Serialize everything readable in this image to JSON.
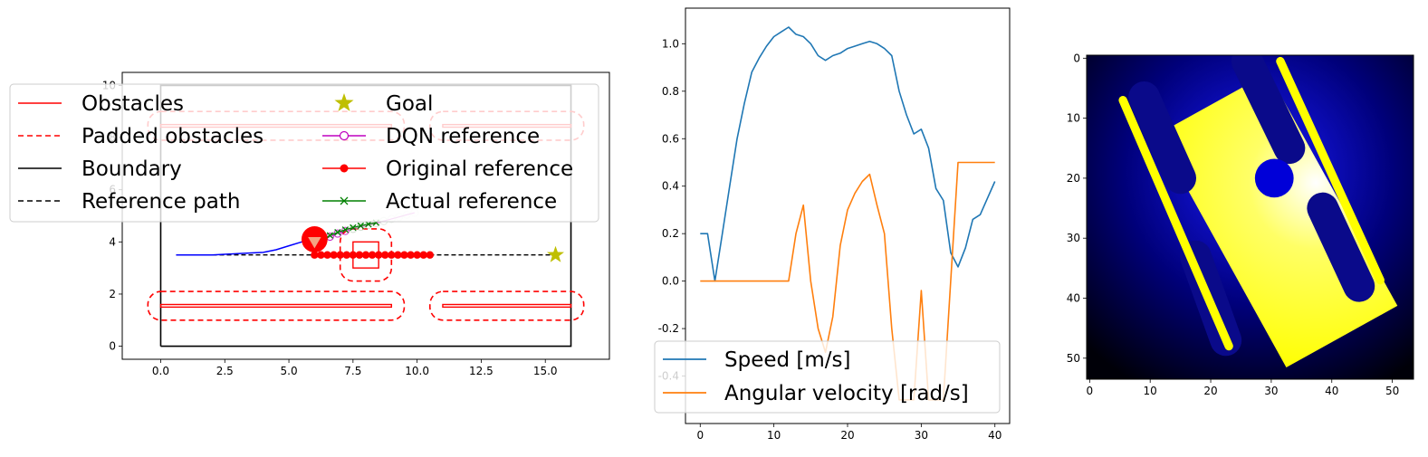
{
  "chart_data": [
    {
      "type": "scatter",
      "title": "",
      "xlabel": "",
      "ylabel": "",
      "xlim": [
        -1.5,
        17.5
      ],
      "ylim": [
        -0.5,
        10.5
      ],
      "x_ticks": [
        "0.0",
        "2.5",
        "5.0",
        "7.5",
        "10.0",
        "12.5",
        "15.0"
      ],
      "x_tick_values": [
        0,
        2.5,
        5,
        7.5,
        10,
        12.5,
        15
      ],
      "y_ticks": [
        "0",
        "2",
        "4",
        "6",
        "8",
        "10"
      ],
      "y_tick_values": [
        0,
        2,
        4,
        6,
        8,
        10
      ],
      "legend": {
        "position": "upper-left",
        "columns": 2,
        "entries": [
          {
            "label": "Obstacles",
            "style": "solid-line",
            "color": "#ff0000"
          },
          {
            "label": "Padded obstacles",
            "style": "dashed-line",
            "color": "#ff0000"
          },
          {
            "label": "Boundary",
            "style": "solid-line",
            "color": "#000000"
          },
          {
            "label": "Reference path",
            "style": "dashed-line",
            "color": "#000000"
          },
          {
            "label": "Goal",
            "style": "star-marker",
            "color": "#bfbf00"
          },
          {
            "label": "DQN reference",
            "style": "line-open-circle",
            "color": "#bf00bf"
          },
          {
            "label": "Original reference",
            "style": "line-filled-circle",
            "color": "#ff0000"
          },
          {
            "label": "Actual reference",
            "style": "line-x",
            "color": "#008000"
          }
        ]
      },
      "boundary": [
        [
          0,
          0
        ],
        [
          16,
          0
        ],
        [
          16,
          10
        ],
        [
          0,
          10
        ],
        [
          0,
          0
        ]
      ],
      "obstacles": [
        {
          "x0": 0,
          "x1": 9,
          "y0": 1.5,
          "y1": 1.6
        },
        {
          "x0": 11,
          "x1": 16,
          "y0": 1.5,
          "y1": 1.6
        },
        {
          "x0": 0,
          "x1": 9,
          "y0": 8.4,
          "y1": 8.5
        },
        {
          "x0": 11,
          "x1": 16,
          "y0": 8.4,
          "y1": 8.5
        },
        {
          "x0": 7.5,
          "x1": 8.5,
          "y0": 3.0,
          "y1": 4.0
        }
      ],
      "padded_obstacles": [
        {
          "x0": -0.5,
          "x1": 9.5,
          "y0": 1.0,
          "y1": 2.1,
          "r": 0.5
        },
        {
          "x0": 10.5,
          "x1": 16.5,
          "y0": 1.0,
          "y1": 2.1,
          "r": 0.5
        },
        {
          "x0": -0.5,
          "x1": 9.5,
          "y0": 7.9,
          "y1": 9.0,
          "r": 0.5
        },
        {
          "x0": 10.5,
          "x1": 16.5,
          "y0": 7.9,
          "y1": 9.0,
          "r": 0.5
        },
        {
          "x0": 7.0,
          "x1": 9.0,
          "y0": 2.5,
          "y1": 4.5,
          "r": 0.5
        }
      ],
      "reference_path": {
        "x": [
          0.6,
          15.5
        ],
        "y": [
          3.5,
          3.5
        ]
      },
      "goal": {
        "x": 15.4,
        "y": 3.5
      },
      "trajectory": {
        "color": "#0000ff",
        "x": [
          0.6,
          2.0,
          3.0,
          4.0,
          4.5,
          5.0,
          5.5,
          5.8,
          6.0
        ],
        "y": [
          3.5,
          3.5,
          3.55,
          3.6,
          3.7,
          3.85,
          4.0,
          4.05,
          4.1
        ]
      },
      "robot": {
        "x": 6.0,
        "y": 4.1,
        "radius": 0.5,
        "heading_deg": 0
      },
      "original_reference": {
        "x": [
          6.0,
          6.25,
          6.5,
          6.75,
          7.0,
          7.25,
          7.5,
          7.75,
          8.0,
          8.25,
          8.5,
          8.75,
          9.0,
          9.25,
          9.5,
          9.75,
          10.0,
          10.25,
          10.5
        ],
        "y": [
          3.5,
          3.5,
          3.5,
          3.5,
          3.5,
          3.5,
          3.5,
          3.5,
          3.5,
          3.5,
          3.5,
          3.5,
          3.5,
          3.5,
          3.5,
          3.5,
          3.5,
          3.5,
          3.5
        ]
      },
      "dqn_reference": {
        "x": [
          6.0,
          6.3,
          6.6,
          6.9,
          7.2,
          7.5,
          7.8,
          8.1,
          8.4,
          8.7,
          9.0,
          9.3,
          9.6,
          9.9
        ],
        "y": [
          3.9,
          4.05,
          4.2,
          4.32,
          4.42,
          4.5,
          4.58,
          4.65,
          4.72,
          4.8,
          4.88,
          4.96,
          5.04,
          5.12
        ]
      },
      "actual_reference": {
        "x": [
          6.0,
          6.3,
          6.6,
          6.9,
          7.2,
          7.5,
          7.8,
          8.1,
          8.4
        ],
        "y": [
          3.95,
          4.1,
          4.25,
          4.37,
          4.47,
          4.55,
          4.62,
          4.68,
          4.74
        ]
      }
    },
    {
      "type": "line",
      "title": "",
      "xlabel": "",
      "ylabel": "",
      "xlim": [
        -2,
        42
      ],
      "ylim": [
        -0.6,
        1.15
      ],
      "x_ticks": [
        "0",
        "10",
        "20",
        "30",
        "40"
      ],
      "x_tick_values": [
        0,
        10,
        20,
        30,
        40
      ],
      "y_ticks": [
        "-0.4",
        "-0.2",
        "0.0",
        "0.2",
        "0.4",
        "0.6",
        "0.8",
        "1.0"
      ],
      "y_tick_values": [
        -0.4,
        -0.2,
        0,
        0.2,
        0.4,
        0.6,
        0.8,
        1.0
      ],
      "legend": {
        "position": "lower-left"
      },
      "x": [
        0,
        1,
        2,
        3,
        4,
        5,
        6,
        7,
        8,
        9,
        10,
        11,
        12,
        13,
        14,
        15,
        16,
        17,
        18,
        19,
        20,
        21,
        22,
        23,
        24,
        25,
        26,
        27,
        28,
        29,
        30,
        31,
        32,
        33,
        34,
        35,
        36,
        37,
        38,
        39,
        40
      ],
      "series": [
        {
          "name": "Speed [m/s]",
          "color": "#1f77b4",
          "values": [
            0.2,
            0.2,
            0.0,
            0.2,
            0.4,
            0.6,
            0.75,
            0.88,
            0.94,
            0.99,
            1.03,
            1.05,
            1.07,
            1.04,
            1.03,
            1.0,
            0.95,
            0.93,
            0.95,
            0.96,
            0.98,
            0.99,
            1.0,
            1.01,
            1.0,
            0.98,
            0.95,
            0.8,
            0.7,
            0.62,
            0.64,
            0.56,
            0.39,
            0.34,
            0.12,
            0.06,
            0.14,
            0.26,
            0.28,
            0.35,
            0.42
          ]
        },
        {
          "name": "Angular velocity [rad/s]",
          "color": "#ff7f0e",
          "values": [
            0.0,
            0.0,
            0.0,
            0.0,
            0.0,
            0.0,
            0.0,
            0.0,
            0.0,
            0.0,
            0.0,
            0.0,
            0.0,
            0.2,
            0.32,
            0.0,
            -0.2,
            -0.3,
            -0.15,
            0.15,
            0.3,
            0.37,
            0.42,
            0.45,
            0.32,
            0.2,
            -0.2,
            -0.5,
            -0.5,
            -0.5,
            -0.04,
            -0.5,
            -0.5,
            -0.5,
            0.0,
            0.5,
            0.5,
            0.5,
            0.5,
            0.5,
            0.5
          ]
        }
      ]
    },
    {
      "type": "heatmap",
      "title": "",
      "xlabel": "",
      "ylabel": "",
      "size": [
        54,
        54
      ],
      "x_ticks": [
        "0",
        "10",
        "20",
        "30",
        "40",
        "50"
      ],
      "x_tick_values": [
        0,
        10,
        20,
        30,
        40,
        50
      ],
      "y_ticks": [
        "0",
        "10",
        "20",
        "30",
        "40",
        "50"
      ],
      "y_tick_values": [
        0,
        10,
        20,
        30,
        40,
        50
      ],
      "colormap": [
        "#000000",
        "#0000c8",
        "#ffffff",
        "#ffff00"
      ],
      "free_space": {
        "center": [
          31,
          27
        ],
        "length": 44,
        "width": 21,
        "angle_deg": 61
      },
      "walls": [
        {
          "x0": 5.5,
          "y0": 7.0,
          "x1": 23.0,
          "y1": 48.0
        },
        {
          "x0": 31.5,
          "y0": 0.5,
          "x1": 48.0,
          "y1": 37.0
        }
      ],
      "stripes": [
        {
          "x0": 9.0,
          "y0": 6.5,
          "x1": 15.0,
          "y1": 20.0
        },
        {
          "x0": 17.5,
          "y0": 33.0,
          "x1": 22.5,
          "y1": 47.0
        },
        {
          "x0": 26.0,
          "y0": 0.5,
          "x1": 33.0,
          "y1": 15.0
        },
        {
          "x0": 38.5,
          "y0": 25.0,
          "x1": 44.5,
          "y1": 38.0
        }
      ],
      "blue_blob": {
        "x": 30.5,
        "y": 20.0,
        "r": 3.2
      }
    }
  ]
}
